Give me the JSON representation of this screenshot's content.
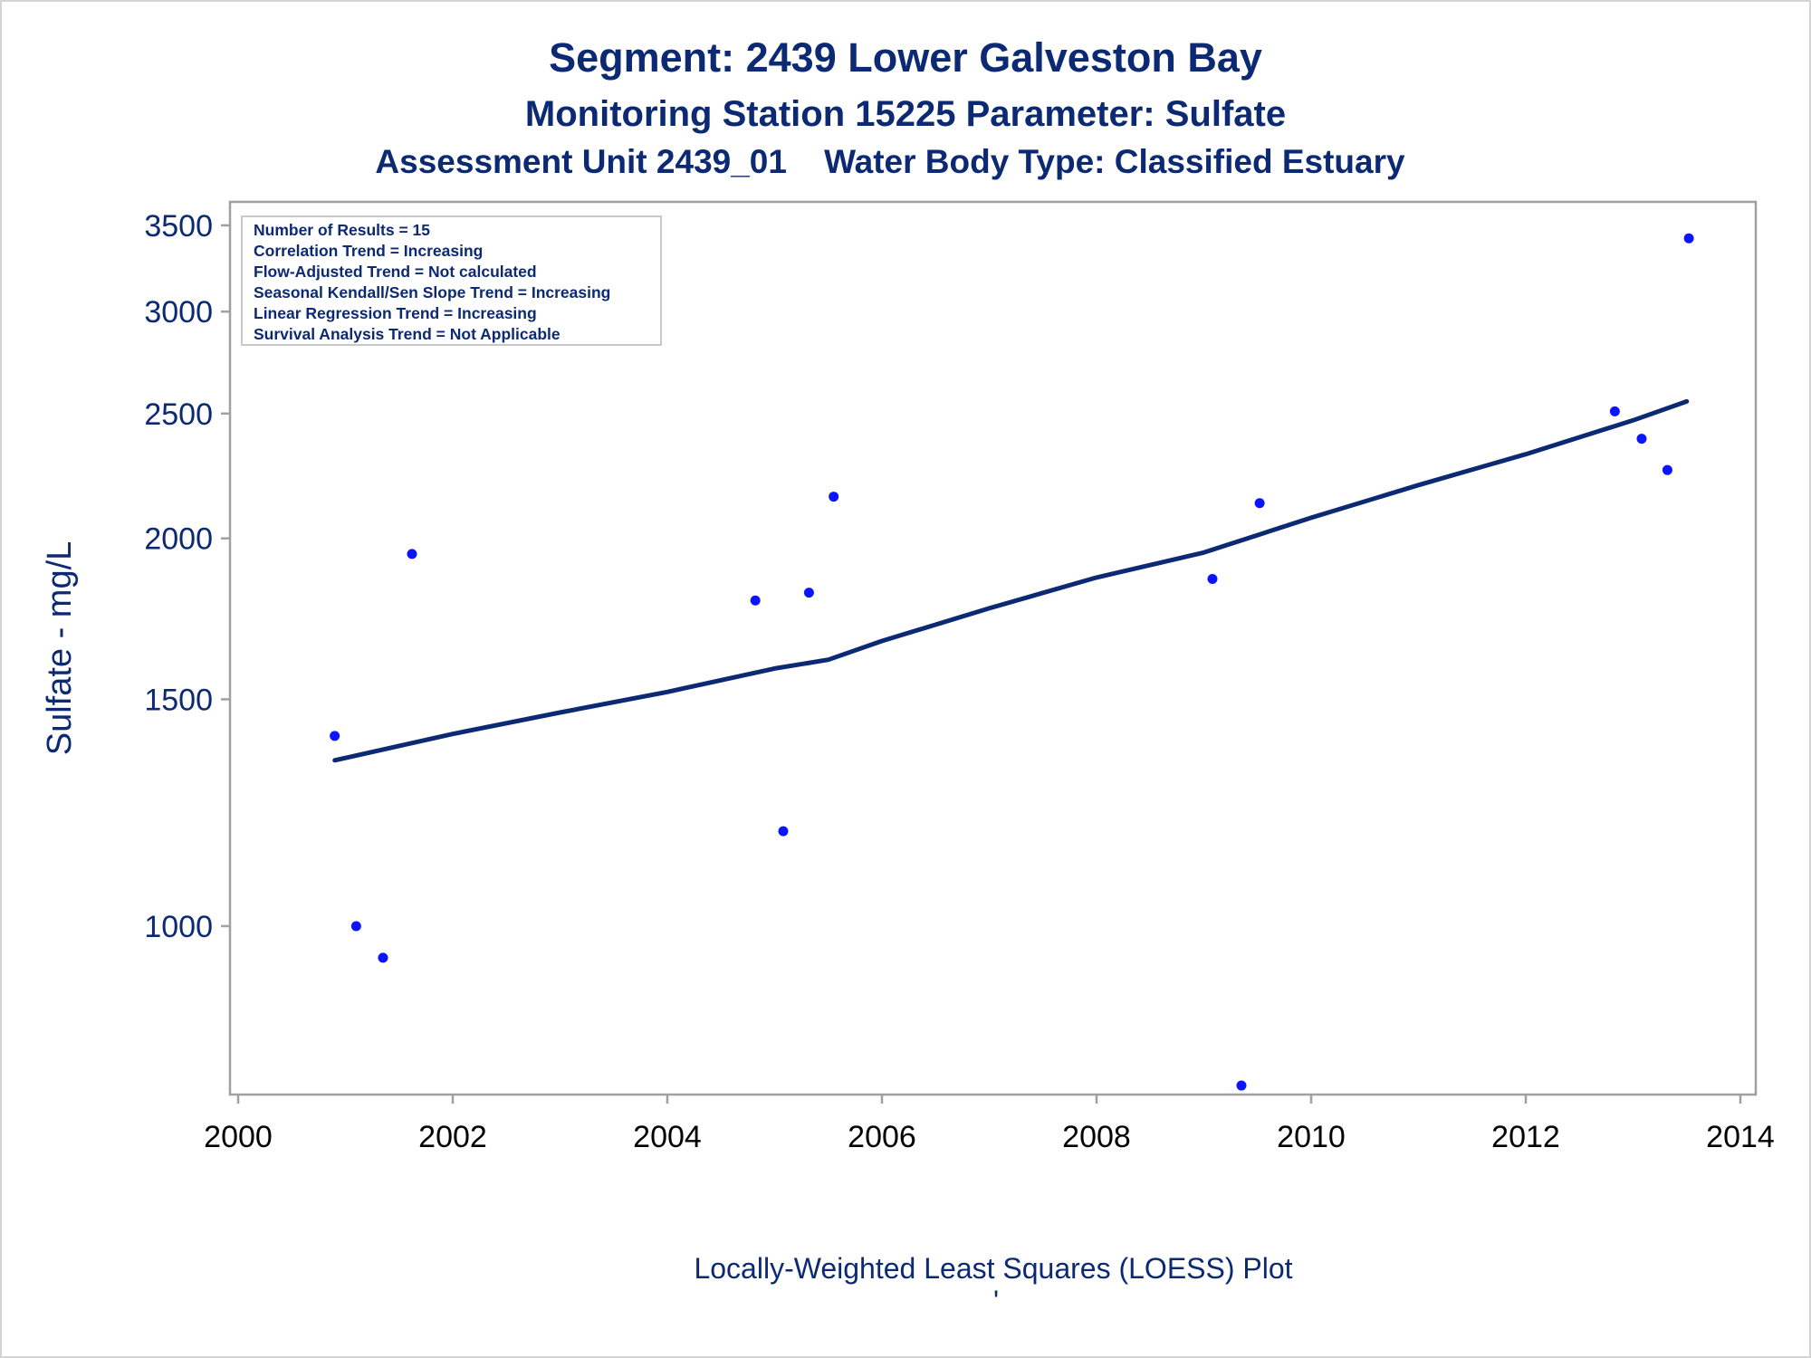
{
  "chart_data": {
    "type": "scatter",
    "title": "Segment: 2439  Lower Galveston Bay",
    "subtitle": "Monitoring Station 15225 Parameter: Sulfate",
    "subtitle2": "Assessment Unit 2439_01    Water Body Type: Classified Estuary",
    "ylabel": "Sulfate - mg/L",
    "footnote": "Locally-Weighted Least Squares (LOESS) Plot",
    "footnote_mark": "'",
    "y_scale": "log",
    "xlim": [
      2000,
      2014
    ],
    "ylim": [
      740,
      3650
    ],
    "x_ticks": [
      2000,
      2002,
      2004,
      2006,
      2008,
      2010,
      2012,
      2014
    ],
    "x_tick_labels": [
      "2000",
      "2002",
      "2004",
      "2006",
      "2008",
      "2010",
      "2012",
      "2014"
    ],
    "y_ticks": [
      1000,
      1500,
      2000,
      2500,
      3000,
      3500
    ],
    "y_tick_labels": [
      "1000",
      "1500",
      "2000",
      "2500",
      "3000",
      "3500"
    ],
    "grid": false,
    "legend_position": "top-left",
    "info_box": [
      "Number of Results = 15",
      "Correlation Trend = Increasing",
      "Flow-Adjusted Trend = Not calculated",
      "Seasonal Kendall/Sen Slope Trend = Increasing",
      "Linear Regression Trend = Increasing",
      "Survival Analysis Trend = Not Applicable"
    ],
    "series": [
      {
        "type": "scatter",
        "x": [
          2000.9,
          2001.1,
          2001.35,
          2001.62,
          2004.82,
          2005.08,
          2005.32,
          2005.55,
          2009.08,
          2009.35,
          2009.52,
          2012.83,
          2013.08,
          2013.32,
          2013.52
        ],
        "y": [
          1405,
          1000,
          945,
          1945,
          1790,
          1185,
          1815,
          2155,
          1860,
          752,
          2130,
          2510,
          2390,
          2260,
          3420
        ]
      },
      {
        "type": "line",
        "x": [
          2000.9,
          2002,
          2003,
          2004,
          2005,
          2005.5,
          2006,
          2007,
          2008,
          2009,
          2010,
          2011,
          2012,
          2013,
          2013.5
        ],
        "y": [
          1345,
          1410,
          1465,
          1520,
          1585,
          1610,
          1665,
          1765,
          1865,
          1950,
          2075,
          2200,
          2325,
          2470,
          2555
        ]
      }
    ],
    "colors": {
      "text": "#0c2a73",
      "points": "#0a14ff",
      "line": "#0c2a73",
      "frame": "#a0a0a0"
    }
  }
}
